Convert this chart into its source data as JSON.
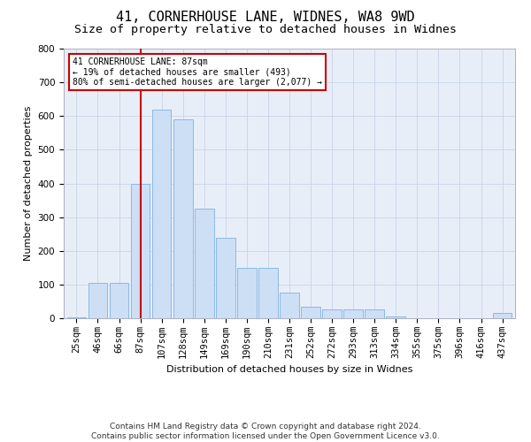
{
  "title": "41, CORNERHOUSE LANE, WIDNES, WA8 9WD",
  "subtitle": "Size of property relative to detached houses in Widnes",
  "xlabel": "Distribution of detached houses by size in Widnes",
  "ylabel": "Number of detached properties",
  "footer": "Contains HM Land Registry data © Crown copyright and database right 2024.\nContains public sector information licensed under the Open Government Licence v3.0.",
  "categories": [
    "25sqm",
    "46sqm",
    "66sqm",
    "87sqm",
    "107sqm",
    "128sqm",
    "149sqm",
    "169sqm",
    "190sqm",
    "210sqm",
    "231sqm",
    "252sqm",
    "272sqm",
    "293sqm",
    "313sqm",
    "334sqm",
    "355sqm",
    "375sqm",
    "396sqm",
    "416sqm",
    "437sqm"
  ],
  "values": [
    2,
    105,
    105,
    400,
    620,
    590,
    325,
    240,
    150,
    150,
    75,
    35,
    25,
    25,
    25,
    5,
    0,
    0,
    0,
    0,
    15
  ],
  "bar_color": "#ccdff5",
  "bar_edge_color": "#7fb3e0",
  "red_line_index": 3,
  "annotation_line1": "41 CORNERHOUSE LANE: 87sqm",
  "annotation_line2": "← 19% of detached houses are smaller (493)",
  "annotation_line3": "80% of semi-detached houses are larger (2,077) →",
  "annotation_box_color": "#ffffff",
  "annotation_box_edge": "#cc0000",
  "red_line_color": "#cc0000",
  "ylim": [
    0,
    800
  ],
  "yticks": [
    0,
    100,
    200,
    300,
    400,
    500,
    600,
    700,
    800
  ],
  "grid_color": "#c8d4e8",
  "bg_color": "#e8eef8",
  "title_fontsize": 11,
  "subtitle_fontsize": 9.5,
  "axis_label_fontsize": 8,
  "tick_fontsize": 7.5,
  "footer_fontsize": 6.5
}
